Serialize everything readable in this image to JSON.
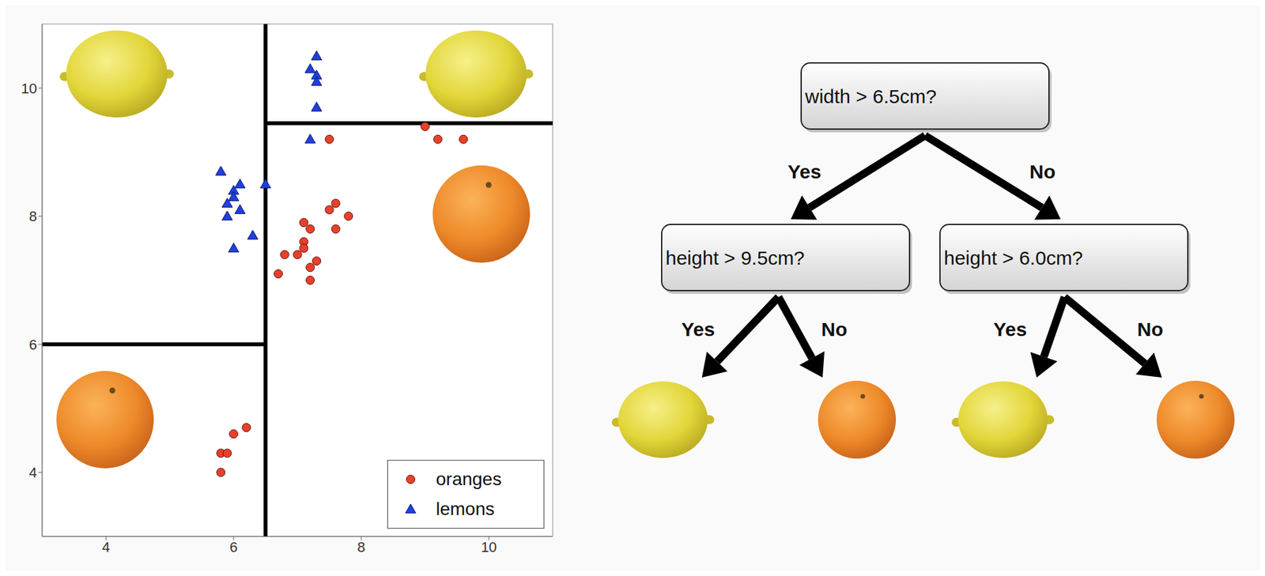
{
  "chart_data": {
    "type": "scatter",
    "xlim": [
      3,
      11
    ],
    "ylim": [
      3,
      11
    ],
    "xticks": [
      4,
      6,
      8,
      10
    ],
    "yticks": [
      4,
      6,
      8,
      10
    ],
    "legend": "lower right",
    "series": [
      {
        "name": "oranges",
        "color": "#e8402a",
        "marker": "circle",
        "x": [
          5.8,
          5.8,
          5.9,
          6.0,
          6.2,
          6.7,
          6.8,
          7.0,
          7.1,
          7.1,
          7.1,
          7.2,
          7.2,
          7.2,
          7.3,
          7.5,
          7.6,
          7.6,
          7.8,
          7.5,
          9.0,
          9.2,
          9.6
        ],
        "values": [
          4.0,
          4.3,
          4.3,
          4.6,
          4.7,
          7.1,
          7.4,
          7.4,
          7.6,
          7.5,
          7.9,
          7.8,
          7.2,
          7.0,
          7.3,
          8.1,
          8.2,
          7.8,
          8.0,
          9.2,
          9.4,
          9.2,
          9.2
        ]
      },
      {
        "name": "lemons",
        "color": "#1f3fe0",
        "marker": "triangle",
        "x": [
          5.8,
          6.1,
          6.0,
          5.9,
          6.1,
          5.9,
          6.0,
          6.3,
          6.5,
          6.0,
          7.3,
          7.2,
          7.3,
          7.3,
          7.3,
          7.2
        ],
        "values": [
          8.7,
          8.5,
          8.4,
          8.2,
          8.1,
          8.0,
          7.5,
          7.7,
          8.5,
          8.3,
          10.5,
          10.3,
          10.2,
          10.1,
          9.7,
          9.2
        ]
      }
    ],
    "splits": [
      {
        "x": [
          6.5,
          6.5
        ],
        "y": [
          3,
          11
        ]
      },
      {
        "x": [
          3,
          6.5
        ],
        "y": [
          6.0,
          6.0
        ]
      },
      {
        "x": [
          6.5,
          11
        ],
        "y": [
          9.45,
          9.45
        ]
      }
    ]
  },
  "tree": {
    "nodes": [
      {
        "label": "width > 6.5cm?"
      },
      {
        "label": "height > 9.5cm?"
      },
      {
        "label": "height > 6.0cm?"
      },
      {
        "leaf": "lemons"
      },
      {
        "leaf": "oranges"
      },
      {
        "leaf": "lemons"
      },
      {
        "leaf": "oranges"
      }
    ],
    "edges": [
      {
        "from": 0,
        "to": 1,
        "label": "Yes"
      },
      {
        "from": 0,
        "to": 2,
        "label": "No"
      },
      {
        "from": 1,
        "to": 3,
        "label": "Yes"
      },
      {
        "from": 1,
        "to": 4,
        "label": "No"
      },
      {
        "from": 2,
        "to": 5,
        "label": "Yes"
      },
      {
        "from": 2,
        "to": 6,
        "label": "No"
      }
    ]
  }
}
